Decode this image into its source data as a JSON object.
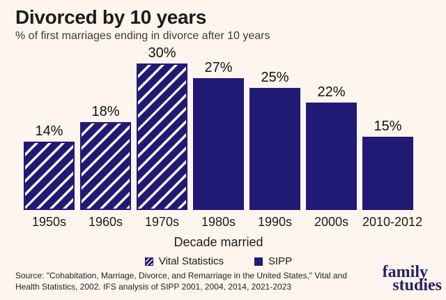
{
  "header": {
    "title": "Divorced by 10 years",
    "subtitle": "% of first marriages ending in divorce after 10 years"
  },
  "chart_data": {
    "type": "bar",
    "title": "Divorced by 10 years",
    "subtitle": "% of first marriages ending in divorce after 10 years",
    "categories": [
      "1950s",
      "1960s",
      "1970s",
      "1980s",
      "1990s",
      "2000s",
      "2010-2012"
    ],
    "values": [
      14,
      18,
      30,
      27,
      25,
      22,
      15
    ],
    "value_labels": [
      "14%",
      "18%",
      "30%",
      "27%",
      "25%",
      "22%",
      "15%"
    ],
    "bar_styles": [
      "hatched",
      "hatched",
      "hatched",
      "solid",
      "solid",
      "solid",
      "solid"
    ],
    "bar_series": [
      "Vital Statistics",
      "Vital Statistics",
      "Vital Statistics",
      "SIPP",
      "SIPP",
      "SIPP",
      "SIPP"
    ],
    "xlabel": "Decade married",
    "ylabel": "",
    "ylim": [
      0,
      32
    ],
    "grid": false,
    "legend_position": "bottom-center",
    "legend": [
      {
        "label": "Vital Statistics",
        "style": "hatched"
      },
      {
        "label": "SIPP",
        "style": "solid"
      }
    ],
    "colors": {
      "bar": "#211a75",
      "background": "#fdf5ee"
    }
  },
  "footer": {
    "source_line1": "Source: \"Cohabitation, Marriage, Divorce, and Remarriage in the United States,\" Vital and",
    "source_line2": "Health Statistics, 2002. IFS analysis of SIPP 2001, 2004, 2014, 2021-2023",
    "logo_line1": "family",
    "logo_line2": "studies"
  }
}
